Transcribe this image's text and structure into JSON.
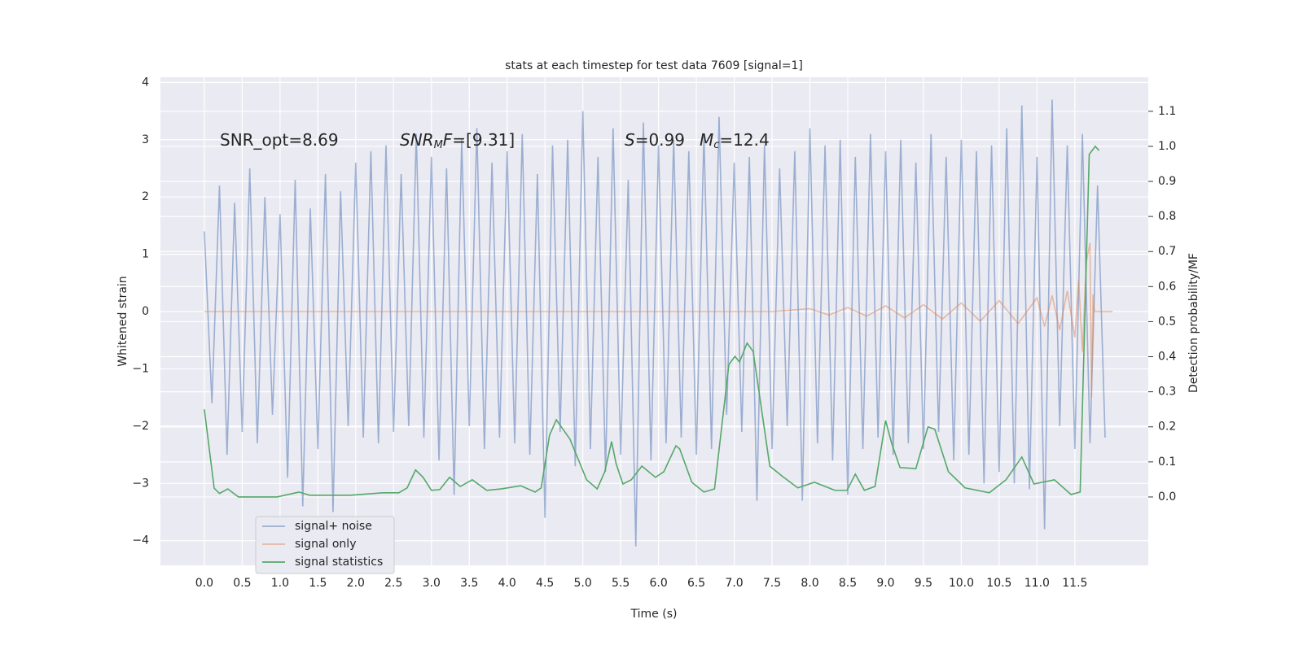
{
  "chart_data": {
    "type": "line",
    "title": "stats at each timestep for test data 7609 [signal=1]",
    "xlabel": "Time (s)",
    "ylabel": "Whitened strain",
    "y2label": "Detection probability/MF",
    "xlim": [
      -0.58,
      12.47
    ],
    "ylim": [
      -4.43,
      4.09
    ],
    "y2lim": [
      -0.195,
      1.197
    ],
    "xticks": [
      {
        "value": 0,
        "label": "0.0"
      },
      {
        "value": 0.5,
        "label": "0.5"
      },
      {
        "value": 1,
        "label": "1.0"
      },
      {
        "value": 1.5,
        "label": "1.5"
      },
      {
        "value": 2,
        "label": "2.0"
      },
      {
        "value": 2.5,
        "label": "2.5"
      },
      {
        "value": 3,
        "label": "3.0"
      },
      {
        "value": 3.5,
        "label": "3.5"
      },
      {
        "value": 4,
        "label": "4.0"
      },
      {
        "value": 4.5,
        "label": "4.5"
      },
      {
        "value": 5,
        "label": "5.0"
      },
      {
        "value": 5.5,
        "label": "5.5"
      },
      {
        "value": 6,
        "label": "6.0"
      },
      {
        "value": 6.5,
        "label": "6.5"
      },
      {
        "value": 7,
        "label": "7.0"
      },
      {
        "value": 7.5,
        "label": "7.5"
      },
      {
        "value": 8,
        "label": "8.0"
      },
      {
        "value": 8.5,
        "label": "8.5"
      },
      {
        "value": 9,
        "label": "9.0"
      },
      {
        "value": 9.5,
        "label": "9.5"
      },
      {
        "value": 10,
        "label": "10.0"
      },
      {
        "value": 10.5,
        "label": "10.5"
      },
      {
        "value": 11,
        "label": "11.0"
      },
      {
        "value": 11.5,
        "label": "11.5"
      }
    ],
    "yticks": [
      {
        "value": -4,
        "label": "−4"
      },
      {
        "value": -3,
        "label": "−3"
      },
      {
        "value": -2,
        "label": "−2"
      },
      {
        "value": -1,
        "label": "−1"
      },
      0,
      1,
      2,
      3,
      4
    ],
    "y2ticks": [
      {
        "value": 0,
        "label": "0.0"
      },
      {
        "value": 0.1,
        "label": "0.1"
      },
      {
        "value": 0.2,
        "label": "0.2"
      },
      {
        "value": 0.3,
        "label": "0.3"
      },
      {
        "value": 0.4,
        "label": "0.4"
      },
      {
        "value": 0.5,
        "label": "0.5"
      },
      {
        "value": 0.6,
        "label": "0.6"
      },
      {
        "value": 0.7,
        "label": "0.7"
      },
      {
        "value": 0.8,
        "label": "0.8"
      },
      {
        "value": 0.9,
        "label": "0.9"
      },
      {
        "value": 1,
        "label": "1.0"
      },
      {
        "value": 1.1,
        "label": "1.1"
      }
    ],
    "grid": true,
    "legend": "lower left",
    "annotations": [
      [
        {
          "text": "SNR_opt=8.69"
        }
      ],
      [
        {
          "text": "SNR",
          "italic": true
        },
        {
          "text": "M",
          "italic": true,
          "sub": true
        },
        {
          "text": "F",
          "italic": true
        },
        {
          "text": "=[9.31]"
        }
      ],
      [
        {
          "text": "S",
          "italic": true
        },
        {
          "text": "=0.99"
        }
      ],
      [
        {
          "text": "M",
          "italic": true
        },
        {
          "text": "c",
          "italic": true,
          "sub": true
        },
        {
          "text": "=12.4"
        }
      ]
    ],
    "series": [
      {
        "name": "signal+ noise",
        "color": "#4c72b0",
        "opacity": 0.5,
        "x": [
          0,
          0.1,
          0.2,
          0.3,
          0.4,
          0.5,
          0.6,
          0.7,
          0.8,
          0.9,
          1,
          1.1,
          1.2,
          1.3,
          1.4,
          1.5,
          1.6,
          1.7,
          1.8,
          1.9,
          2,
          2.1,
          2.2,
          2.3,
          2.4,
          2.5,
          2.6,
          2.7,
          2.8,
          2.9,
          3,
          3.1,
          3.2,
          3.3,
          3.4,
          3.5,
          3.6,
          3.7,
          3.8,
          3.9,
          4,
          4.1,
          4.2,
          4.3,
          4.4,
          4.5,
          4.6,
          4.7,
          4.8,
          4.9,
          5,
          5.1,
          5.2,
          5.3,
          5.4,
          5.5,
          5.6,
          5.7,
          5.8,
          5.9,
          6,
          6.1,
          6.2,
          6.3,
          6.4,
          6.5,
          6.6,
          6.7,
          6.8,
          6.9,
          7,
          7.1,
          7.2,
          7.3,
          7.4,
          7.5,
          7.6,
          7.7,
          7.8,
          7.9,
          8,
          8.1,
          8.2,
          8.3,
          8.4,
          8.5,
          8.6,
          8.7,
          8.8,
          8.9,
          9,
          9.1,
          9.2,
          9.3,
          9.4,
          9.5,
          9.6,
          9.7,
          9.8,
          9.9,
          10,
          10.1,
          10.2,
          10.3,
          10.4,
          10.5,
          10.6,
          10.7,
          10.8,
          10.9,
          11,
          11.1,
          11.2,
          11.3,
          11.4,
          11.5,
          11.6,
          11.7,
          11.8,
          11.9
        ],
        "values": [
          1.4,
          -1.6,
          2.2,
          -2.5,
          1.9,
          -2.1,
          2.5,
          -2.3,
          2.0,
          -1.8,
          1.7,
          -2.9,
          2.3,
          -3.4,
          1.8,
          -2.4,
          2.4,
          -3.5,
          2.1,
          -2.0,
          2.6,
          -2.2,
          2.8,
          -2.3,
          2.9,
          -2.1,
          2.4,
          -2.0,
          3.1,
          -2.2,
          2.7,
          -2.6,
          2.5,
          -3.2,
          3.0,
          -2.0,
          3.2,
          -2.4,
          2.6,
          -2.2,
          2.8,
          -2.3,
          3.1,
          -2.5,
          2.4,
          -3.6,
          2.9,
          -2.1,
          3.0,
          -2.7,
          3.5,
          -2.4,
          2.7,
          -2.8,
          3.2,
          -2.5,
          2.3,
          -4.1,
          3.3,
          -2.6,
          2.9,
          -2.3,
          3.0,
          -2.2,
          2.8,
          -2.5,
          3.1,
          -2.4,
          3.4,
          -1.8,
          2.6,
          -2.1,
          2.7,
          -3.3,
          2.9,
          -2.4,
          2.5,
          -2.0,
          2.8,
          -3.3,
          3.2,
          -2.3,
          2.9,
          -2.6,
          3.0,
          -3.2,
          2.7,
          -2.4,
          3.1,
          -2.2,
          2.8,
          -2.5,
          3.0,
          -2.3,
          2.6,
          -2.4,
          3.1,
          -2.1,
          2.7,
          -2.6,
          3.0,
          -2.5,
          2.8,
          -3.0,
          2.9,
          -2.8,
          3.2,
          -3.0,
          3.6,
          -3.1,
          2.7,
          -3.8,
          3.7,
          -2.0,
          2.9,
          -2.4,
          3.1,
          -2.3,
          2.2,
          -2.2
        ]
      },
      {
        "name": "signal only",
        "color": "#dd8452",
        "opacity": 0.5,
        "x": [
          0,
          7.5,
          8.0,
          8.25,
          8.5,
          8.75,
          9.0,
          9.25,
          9.5,
          9.75,
          10.0,
          10.25,
          10.5,
          10.75,
          11.0,
          11.1,
          11.2,
          11.3,
          11.4,
          11.5,
          11.55,
          11.6,
          11.65,
          11.7,
          11.72,
          11.74,
          11.76,
          11.8,
          12.0
        ],
        "values": [
          0,
          0,
          0.05,
          -0.06,
          0.07,
          -0.08,
          0.1,
          -0.11,
          0.12,
          -0.13,
          0.15,
          -0.17,
          0.19,
          -0.21,
          0.24,
          -0.26,
          0.28,
          -0.32,
          0.36,
          -0.45,
          0.55,
          -0.7,
          0.85,
          1.2,
          -1.5,
          0.3,
          0,
          0,
          0
        ]
      },
      {
        "name": "signal statistics",
        "color": "#55a868",
        "opacity": 1,
        "axis": "y2",
        "x": [
          0,
          0.13,
          0.2,
          0.31,
          0.45,
          0.96,
          1.25,
          1.39,
          1.93,
          2.36,
          2.57,
          2.68,
          2.79,
          2.89,
          3.0,
          3.11,
          3.24,
          3.38,
          3.54,
          3.73,
          3.92,
          4.18,
          4.37,
          4.45,
          4.56,
          4.65,
          4.83,
          5.05,
          5.19,
          5.29,
          5.38,
          5.44,
          5.53,
          5.64,
          5.78,
          5.96,
          6.07,
          6.23,
          6.28,
          6.44,
          6.6,
          6.74,
          6.93,
          7.01,
          7.07,
          7.17,
          7.25,
          7.47,
          7.63,
          7.84,
          8.06,
          8.33,
          8.49,
          8.6,
          8.72,
          8.86,
          9.0,
          9.08,
          9.19,
          9.4,
          9.56,
          9.65,
          9.83,
          10.05,
          10.37,
          10.59,
          10.8,
          10.96,
          11.23,
          11.45,
          11.57,
          11.69,
          11.77,
          11.82
        ],
        "values": [
          0.25,
          0.025,
          0.01,
          0.023,
          0,
          0,
          0.014,
          0.005,
          0.005,
          0.012,
          0.012,
          0.026,
          0.077,
          0.056,
          0.019,
          0.021,
          0.056,
          0.03,
          0.049,
          0.019,
          0.023,
          0.032,
          0.014,
          0.026,
          0.176,
          0.22,
          0.165,
          0.049,
          0.023,
          0.072,
          0.158,
          0.095,
          0.037,
          0.049,
          0.088,
          0.056,
          0.072,
          0.146,
          0.137,
          0.042,
          0.014,
          0.023,
          0.378,
          0.401,
          0.385,
          0.439,
          0.415,
          0.088,
          0.06,
          0.026,
          0.042,
          0.019,
          0.019,
          0.065,
          0.019,
          0.03,
          0.218,
          0.153,
          0.084,
          0.081,
          0.2,
          0.193,
          0.072,
          0.026,
          0.012,
          0.049,
          0.114,
          0.037,
          0.049,
          0.007,
          0.014,
          0.977,
          1.0,
          0.988
        ]
      }
    ]
  }
}
